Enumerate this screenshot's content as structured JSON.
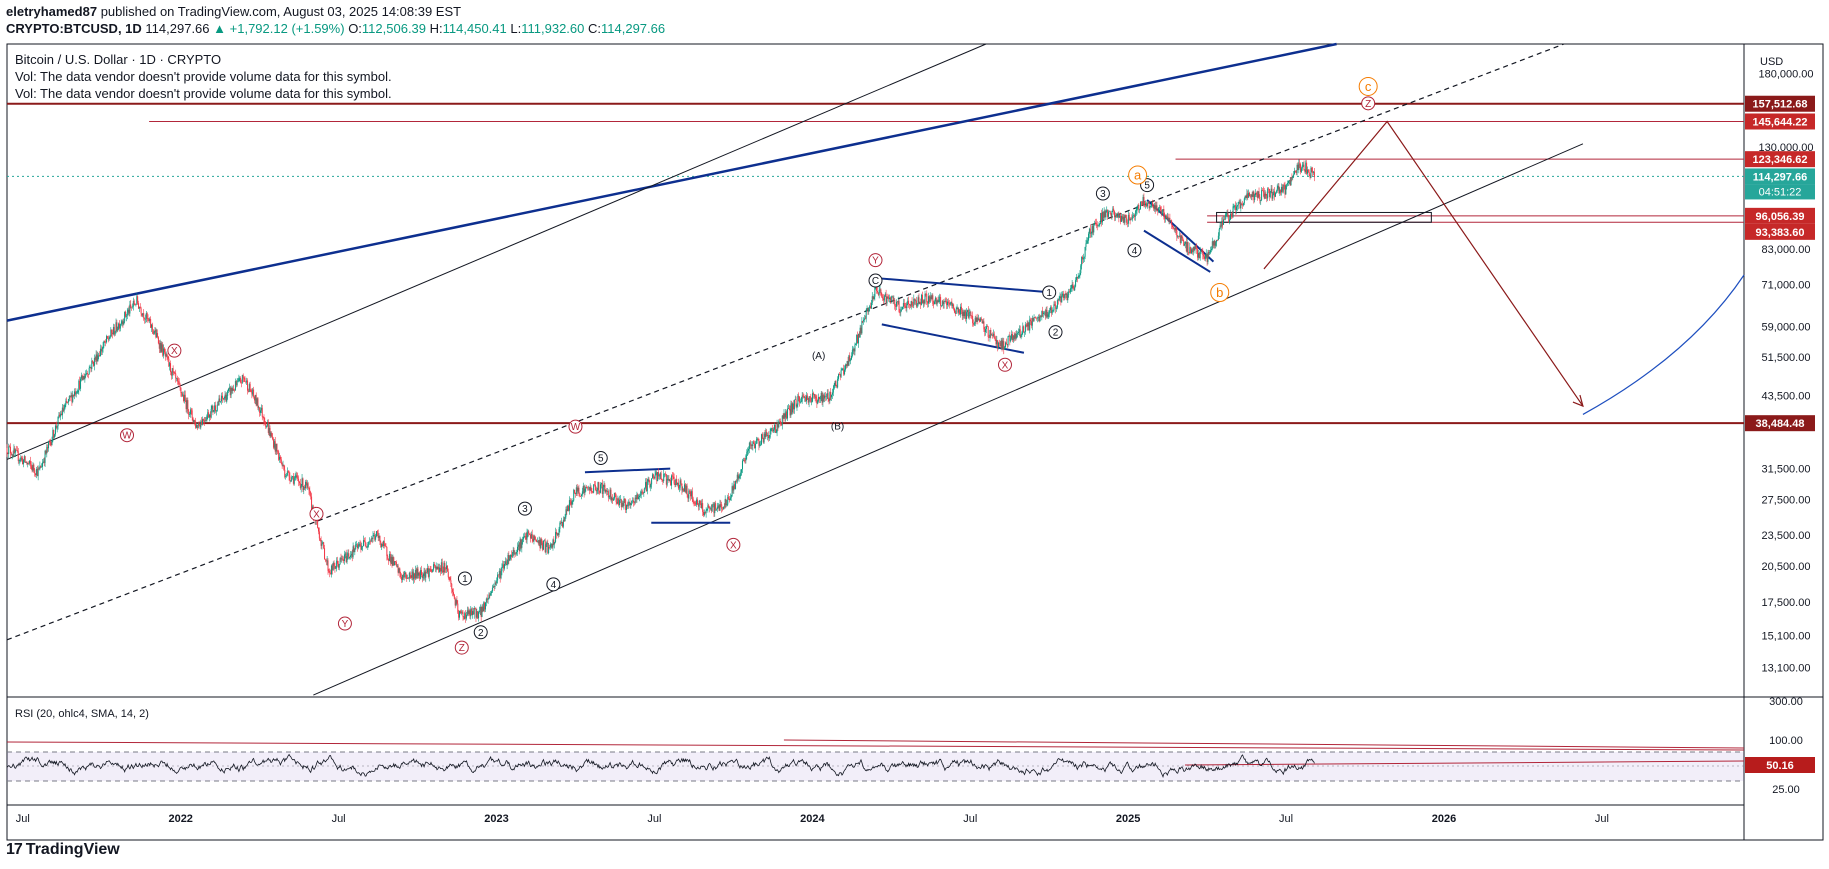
{
  "header": {
    "author": "eletryhamed87",
    "published": "published on TradingView.com, August 03, 2025 14:08:39 EST",
    "symbol": "CRYPTO:BTCUSD, 1D",
    "last": "114,297.66",
    "change": "▲ +1,792.12 (+1.59%)",
    "o_label": "O:",
    "o_val": "112,506.39",
    "h_label": "H:",
    "h_val": "114,450.41",
    "l_label": "L:",
    "l_val": "111,932.60",
    "c_label": "C:",
    "c_val": "114,297.66"
  },
  "legend": {
    "title": "Bitcoin / U.S. Dollar · 1D · CRYPTO",
    "vol1": "Vol: The data vendor doesn't provide volume data for this symbol.",
    "vol2": "Vol: The data vendor doesn't provide volume data for this symbol."
  },
  "colors": {
    "up": "#089981",
    "down": "#f23645",
    "resistance": "#8b1a1a",
    "trend_blue": "#0d2f8f",
    "elliott_red": "#b2263a",
    "elliott_orange": "#f57c00"
  },
  "chart_data": {
    "type": "candlestick",
    "title": "Bitcoin / U.S. Dollar · 1D · CRYPTO",
    "currency": "USD",
    "scale": "log",
    "y_range": [
      11500,
      205000
    ],
    "x_range_years": [
      2021.45,
      2026.95
    ],
    "y_ticks": [
      "180,000.00",
      "130,000.00",
      "83,000.00",
      "71,000.00",
      "59,000.00",
      "51,500.00",
      "43,500.00",
      "31,500.00",
      "27,500.00",
      "23,500.00",
      "20,500.00",
      "17,500.00",
      "15,100.00",
      "13,100.00"
    ],
    "x_ticks": [
      {
        "label": "Jul",
        "t": 2021.5
      },
      {
        "label": "2022",
        "t": 2022.0
      },
      {
        "label": "Jul",
        "t": 2022.5
      },
      {
        "label": "2023",
        "t": 2023.0
      },
      {
        "label": "Jul",
        "t": 2023.5
      },
      {
        "label": "2024",
        "t": 2024.0
      },
      {
        "label": "Jul",
        "t": 2024.5
      },
      {
        "label": "2025",
        "t": 2025.0
      },
      {
        "label": "Jul",
        "t": 2025.5
      },
      {
        "label": "2026",
        "t": 2026.0
      },
      {
        "label": "Jul",
        "t": 2026.5
      }
    ],
    "price_path": [
      [
        2021.45,
        34500
      ],
      [
        2021.55,
        31000
      ],
      [
        2021.62,
        40000
      ],
      [
        2021.7,
        48000
      ],
      [
        2021.78,
        57000
      ],
      [
        2021.86,
        66000
      ],
      [
        2021.92,
        57000
      ],
      [
        2021.98,
        47000
      ],
      [
        2022.05,
        38000
      ],
      [
        2022.12,
        42000
      ],
      [
        2022.2,
        47000
      ],
      [
        2022.26,
        40000
      ],
      [
        2022.33,
        31000
      ],
      [
        2022.4,
        29000
      ],
      [
        2022.47,
        20000
      ],
      [
        2022.55,
        22000
      ],
      [
        2022.62,
        23500
      ],
      [
        2022.7,
        19500
      ],
      [
        2022.78,
        20000
      ],
      [
        2022.84,
        20500
      ],
      [
        2022.88,
        16500
      ],
      [
        2022.95,
        16700
      ],
      [
        2023.03,
        21000
      ],
      [
        2023.1,
        23500
      ],
      [
        2023.17,
        22000
      ],
      [
        2023.25,
        28500
      ],
      [
        2023.33,
        29000
      ],
      [
        2023.42,
        26500
      ],
      [
        2023.5,
        30500
      ],
      [
        2023.58,
        29500
      ],
      [
        2023.66,
        26000
      ],
      [
        2023.73,
        27000
      ],
      [
        2023.8,
        34500
      ],
      [
        2023.88,
        37500
      ],
      [
        2023.96,
        43000
      ],
      [
        2024.05,
        43000
      ],
      [
        2024.12,
        51500
      ],
      [
        2024.2,
        69000
      ],
      [
        2024.28,
        64000
      ],
      [
        2024.36,
        67000
      ],
      [
        2024.45,
        64000
      ],
      [
        2024.53,
        60000
      ],
      [
        2024.6,
        54000
      ],
      [
        2024.68,
        59000
      ],
      [
        2024.75,
        63000
      ],
      [
        2024.83,
        70000
      ],
      [
        2024.88,
        90000
      ],
      [
        2024.93,
        98000
      ],
      [
        2025.0,
        94000
      ],
      [
        2025.05,
        103000
      ],
      [
        2025.12,
        96000
      ],
      [
        2025.18,
        84000
      ],
      [
        2025.25,
        80000
      ],
      [
        2025.3,
        93000
      ],
      [
        2025.37,
        104000
      ],
      [
        2025.45,
        106000
      ],
      [
        2025.5,
        108000
      ],
      [
        2025.53,
        118000
      ],
      [
        2025.56,
        119000
      ],
      [
        2025.59,
        114297
      ]
    ],
    "price_labels": [
      {
        "name": "level-157512",
        "label": "157,512.68",
        "value": 157512.68,
        "color": "#8b1a1a"
      },
      {
        "name": "level-145644",
        "label": "145,644.22",
        "value": 145644.22,
        "color": "#c62828"
      },
      {
        "name": "level-123346",
        "label": "123,346.62",
        "value": 123346.62,
        "color": "#c62828"
      },
      {
        "name": "last-price",
        "label": "114,297.66",
        "value": 114297.66,
        "color": "#26a69a"
      },
      {
        "name": "level-96056",
        "label": "96,056.39",
        "value": 96056.39,
        "color": "#c62828"
      },
      {
        "name": "level-93383",
        "label": "93,383.60",
        "value": 93383.6,
        "color": "#c62828"
      },
      {
        "name": "level-38484",
        "label": "38,484.48",
        "value": 38484.48,
        "color": "#8b1a1a"
      }
    ],
    "countdown": "04:51:22",
    "rsi": {
      "label": "RSI (20, ohlc4, SMA, 14, 2)",
      "y_ticks": [
        "300.00",
        "100.00",
        "25.00"
      ],
      "value_label": "50.16",
      "value": 50.16
    },
    "elliott_labels": [
      {
        "text": "W",
        "t": 2021.83,
        "p": 36500,
        "style": "red"
      },
      {
        "text": "X",
        "t": 2021.98,
        "p": 53000,
        "style": "red"
      },
      {
        "text": "X",
        "t": 2022.43,
        "p": 25800,
        "style": "red"
      },
      {
        "text": "Y",
        "t": 2022.52,
        "p": 15900,
        "style": "red"
      },
      {
        "text": "Z",
        "t": 2022.89,
        "p": 14300,
        "style": "red"
      },
      {
        "text": "1",
        "t": 2022.9,
        "p": 19400,
        "style": "black"
      },
      {
        "text": "2",
        "t": 2022.95,
        "p": 15300,
        "style": "black"
      },
      {
        "text": "3",
        "t": 2023.09,
        "p": 26400,
        "style": "black"
      },
      {
        "text": "4",
        "t": 2023.18,
        "p": 18900,
        "style": "black"
      },
      {
        "text": "W",
        "t": 2023.25,
        "p": 37900,
        "style": "red"
      },
      {
        "text": "5",
        "t": 2023.33,
        "p": 33000,
        "style": "black"
      },
      {
        "text": "X",
        "t": 2023.75,
        "p": 22500,
        "style": "red"
      },
      {
        "text": "(A)",
        "t": 2024.02,
        "p": 52000,
        "style": "plain"
      },
      {
        "text": "(B)",
        "t": 2024.08,
        "p": 38100,
        "style": "plain"
      },
      {
        "text": "Y",
        "t": 2024.2,
        "p": 79000,
        "style": "red"
      },
      {
        "text": "C",
        "t": 2024.2,
        "p": 72200,
        "style": "black"
      },
      {
        "text": "X",
        "t": 2024.61,
        "p": 49800,
        "style": "red"
      },
      {
        "text": "1",
        "t": 2024.75,
        "p": 68500,
        "style": "black"
      },
      {
        "text": "2",
        "t": 2024.77,
        "p": 57500,
        "style": "black"
      },
      {
        "text": "3",
        "t": 2024.92,
        "p": 106000,
        "style": "black"
      },
      {
        "text": "4",
        "t": 2025.02,
        "p": 82500,
        "style": "black"
      },
      {
        "text": "5",
        "t": 2025.06,
        "p": 110000,
        "style": "black"
      },
      {
        "text": "a",
        "t": 2025.03,
        "p": 115000,
        "style": "orange"
      },
      {
        "text": "b",
        "t": 2025.29,
        "p": 68500,
        "style": "orange"
      },
      {
        "text": "c",
        "t": 2025.76,
        "p": 170000,
        "style": "orange"
      },
      {
        "text": "Z",
        "t": 2025.76,
        "p": 157800,
        "style": "red"
      }
    ]
  },
  "footer": {
    "logo_mark": "17",
    "logo_text": "TradingView"
  }
}
